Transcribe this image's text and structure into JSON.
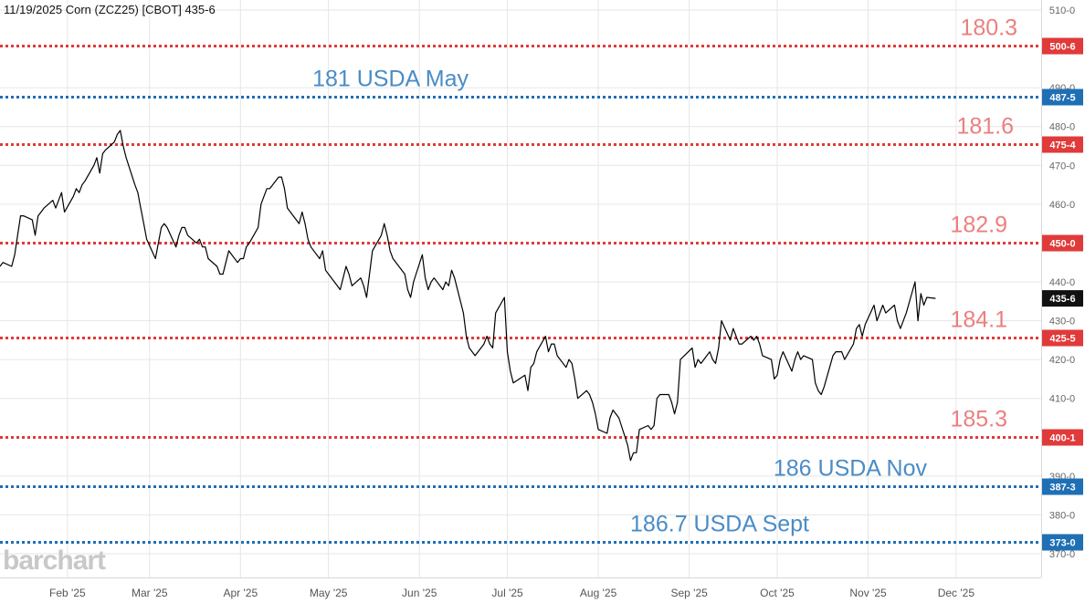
{
  "header": {
    "title": "11/19/2025 Corn (ZCZ25) [CBOT] 435-6"
  },
  "watermark": "barchart",
  "colors": {
    "red_line": "#e03a3a",
    "blue_line": "#1f6fb5",
    "red_annotation": "#ec7f7f",
    "blue_annotation": "#4a8cc6",
    "price_tag": "#111111",
    "grid": "#e6e6e6",
    "price_line": "#000000"
  },
  "chart_data": {
    "type": "line",
    "title": "11/19/2025 Corn (ZCZ25) [CBOT] 435-6",
    "xlabel": "",
    "ylabel": "",
    "ylim": [
      366,
      512
    ],
    "xlim": [
      "2025-01-09",
      "2025-12-30"
    ],
    "grid": true,
    "y_axis_position": "right",
    "y_ticks": [
      {
        "value": 510,
        "label": "510-0"
      },
      {
        "value": 490,
        "label": "490-0"
      },
      {
        "value": 480,
        "label": "480-0"
      },
      {
        "value": 470,
        "label": "470-0"
      },
      {
        "value": 460,
        "label": "460-0"
      },
      {
        "value": 440,
        "label": "440-0"
      },
      {
        "value": 430,
        "label": "430-0"
      },
      {
        "value": 420,
        "label": "420-0"
      },
      {
        "value": 410,
        "label": "410-0"
      },
      {
        "value": 390,
        "label": "390-0"
      },
      {
        "value": 380,
        "label": "380-0"
      },
      {
        "value": 370,
        "label": "370-0"
      }
    ],
    "x_ticks": [
      {
        "date": "2025-02-01",
        "label": "Feb '25"
      },
      {
        "date": "2025-03-01",
        "label": "Mar '25"
      },
      {
        "date": "2025-04-01",
        "label": "Apr '25"
      },
      {
        "date": "2025-05-01",
        "label": "May '25"
      },
      {
        "date": "2025-06-01",
        "label": "Jun '25"
      },
      {
        "date": "2025-07-01",
        "label": "Jul '25"
      },
      {
        "date": "2025-08-01",
        "label": "Aug '25"
      },
      {
        "date": "2025-09-01",
        "label": "Sep '25"
      },
      {
        "date": "2025-10-01",
        "label": "Oct '25"
      },
      {
        "date": "2025-11-01",
        "label": "Nov '25"
      },
      {
        "date": "2025-12-01",
        "label": "Dec '25"
      }
    ],
    "last_price": {
      "value": 435.75,
      "label": "435-6"
    },
    "levels": [
      {
        "value": 500.75,
        "tag": "500-6",
        "annotation": "180.3",
        "color": "red"
      },
      {
        "value": 487.625,
        "tag": "487-5",
        "annotation": "181 USDA May",
        "color": "blue"
      },
      {
        "value": 475.5,
        "tag": "475-4",
        "annotation": "181.6",
        "color": "red"
      },
      {
        "value": 450.0,
        "tag": "450-0",
        "annotation": "182.9",
        "color": "red"
      },
      {
        "value": 425.625,
        "tag": "425-5",
        "annotation": "184.1",
        "color": "red"
      },
      {
        "value": 400.125,
        "tag": "400-1",
        "annotation": "185.3",
        "color": "red"
      },
      {
        "value": 387.375,
        "tag": "387-3",
        "annotation": "186 USDA Nov",
        "color": "blue"
      },
      {
        "value": 373.0,
        "tag": "373-0",
        "annotation": "186.7 USDA Sept",
        "color": "blue"
      }
    ],
    "series": [
      {
        "points": [
          [
            "2025-01-09",
            444
          ],
          [
            "2025-01-10",
            445
          ],
          [
            "2025-01-13",
            444
          ],
          [
            "2025-01-14",
            447
          ],
          [
            "2025-01-15",
            452
          ],
          [
            "2025-01-16",
            457
          ],
          [
            "2025-01-17",
            457
          ],
          [
            "2025-01-20",
            456
          ],
          [
            "2025-01-21",
            452
          ],
          [
            "2025-01-22",
            457
          ],
          [
            "2025-01-23",
            458
          ],
          [
            "2025-01-24",
            459
          ],
          [
            "2025-01-27",
            461
          ],
          [
            "2025-01-28",
            459
          ],
          [
            "2025-01-29",
            461
          ],
          [
            "2025-01-30",
            463
          ],
          [
            "2025-01-31",
            458
          ],
          [
            "2025-02-03",
            462
          ],
          [
            "2025-02-04",
            464
          ],
          [
            "2025-02-05",
            463
          ],
          [
            "2025-02-06",
            465
          ],
          [
            "2025-02-07",
            466
          ],
          [
            "2025-02-10",
            470
          ],
          [
            "2025-02-11",
            472
          ],
          [
            "2025-02-12",
            468
          ],
          [
            "2025-02-13",
            473
          ],
          [
            "2025-02-14",
            474
          ],
          [
            "2025-02-17",
            476
          ],
          [
            "2025-02-18",
            478
          ],
          [
            "2025-02-19",
            479
          ],
          [
            "2025-02-20",
            475
          ],
          [
            "2025-02-21",
            472
          ],
          [
            "2025-02-24",
            465
          ],
          [
            "2025-02-25",
            463
          ],
          [
            "2025-02-26",
            459
          ],
          [
            "2025-02-27",
            455
          ],
          [
            "2025-02-28",
            451
          ],
          [
            "2025-03-03",
            446
          ],
          [
            "2025-03-04",
            450
          ],
          [
            "2025-03-05",
            454
          ],
          [
            "2025-03-06",
            455
          ],
          [
            "2025-03-07",
            454
          ],
          [
            "2025-03-10",
            449
          ],
          [
            "2025-03-11",
            452
          ],
          [
            "2025-03-12",
            454
          ],
          [
            "2025-03-13",
            454
          ],
          [
            "2025-03-14",
            452
          ],
          [
            "2025-03-17",
            450
          ],
          [
            "2025-03-18",
            451
          ],
          [
            "2025-03-19",
            449
          ],
          [
            "2025-03-20",
            449
          ],
          [
            "2025-03-21",
            446
          ],
          [
            "2025-03-24",
            444
          ],
          [
            "2025-03-25",
            442
          ],
          [
            "2025-03-26",
            442
          ],
          [
            "2025-03-27",
            445
          ],
          [
            "2025-03-28",
            448
          ],
          [
            "2025-03-31",
            445
          ],
          [
            "2025-04-01",
            446
          ],
          [
            "2025-04-02",
            446
          ],
          [
            "2025-04-03",
            449
          ],
          [
            "2025-04-04",
            450
          ],
          [
            "2025-04-07",
            454
          ],
          [
            "2025-04-08",
            460
          ],
          [
            "2025-04-09",
            462
          ],
          [
            "2025-04-10",
            464
          ],
          [
            "2025-04-11",
            464
          ],
          [
            "2025-04-14",
            467
          ],
          [
            "2025-04-15",
            467
          ],
          [
            "2025-04-16",
            464
          ],
          [
            "2025-04-17",
            459
          ],
          [
            "2025-04-21",
            455
          ],
          [
            "2025-04-22",
            458
          ],
          [
            "2025-04-23",
            455
          ],
          [
            "2025-04-24",
            451
          ],
          [
            "2025-04-25",
            449
          ],
          [
            "2025-04-28",
            446
          ],
          [
            "2025-04-29",
            448
          ],
          [
            "2025-04-30",
            443
          ],
          [
            "2025-05-01",
            442
          ],
          [
            "2025-05-02",
            441
          ],
          [
            "2025-05-05",
            438
          ],
          [
            "2025-05-06",
            441
          ],
          [
            "2025-05-07",
            444
          ],
          [
            "2025-05-08",
            442
          ],
          [
            "2025-05-09",
            439
          ],
          [
            "2025-05-12",
            441
          ],
          [
            "2025-05-13",
            439
          ],
          [
            "2025-05-14",
            436
          ],
          [
            "2025-05-15",
            442
          ],
          [
            "2025-05-16",
            448
          ],
          [
            "2025-05-19",
            452
          ],
          [
            "2025-05-20",
            455
          ],
          [
            "2025-05-21",
            452
          ],
          [
            "2025-05-22",
            448
          ],
          [
            "2025-05-23",
            446
          ],
          [
            "2025-05-27",
            442
          ],
          [
            "2025-05-28",
            438
          ],
          [
            "2025-05-29",
            436
          ],
          [
            "2025-05-30",
            440
          ],
          [
            "2025-06-02",
            447
          ],
          [
            "2025-06-03",
            441
          ],
          [
            "2025-06-04",
            438
          ],
          [
            "2025-06-05",
            440
          ],
          [
            "2025-06-06",
            441
          ],
          [
            "2025-06-09",
            438
          ],
          [
            "2025-06-10",
            440
          ],
          [
            "2025-06-11",
            439
          ],
          [
            "2025-06-12",
            443
          ],
          [
            "2025-06-13",
            441
          ],
          [
            "2025-06-16",
            432
          ],
          [
            "2025-06-17",
            426
          ],
          [
            "2025-06-18",
            423
          ],
          [
            "2025-06-20",
            421
          ],
          [
            "2025-06-23",
            424
          ],
          [
            "2025-06-24",
            426
          ],
          [
            "2025-06-25",
            424
          ],
          [
            "2025-06-26",
            423
          ],
          [
            "2025-06-27",
            432
          ],
          [
            "2025-06-30",
            436
          ],
          [
            "2025-07-01",
            422
          ],
          [
            "2025-07-02",
            417
          ],
          [
            "2025-07-03",
            414
          ],
          [
            "2025-07-07",
            416
          ],
          [
            "2025-07-08",
            412
          ],
          [
            "2025-07-09",
            418
          ],
          [
            "2025-07-10",
            419
          ],
          [
            "2025-07-11",
            422
          ],
          [
            "2025-07-14",
            426
          ],
          [
            "2025-07-15",
            422
          ],
          [
            "2025-07-16",
            424
          ],
          [
            "2025-07-17",
            424
          ],
          [
            "2025-07-18",
            421
          ],
          [
            "2025-07-21",
            418
          ],
          [
            "2025-07-22",
            420
          ],
          [
            "2025-07-23",
            419
          ],
          [
            "2025-07-24",
            415
          ],
          [
            "2025-07-25",
            410
          ],
          [
            "2025-07-28",
            412
          ],
          [
            "2025-07-29",
            411
          ],
          [
            "2025-07-30",
            409
          ],
          [
            "2025-07-31",
            406
          ],
          [
            "2025-08-01",
            402
          ],
          [
            "2025-08-04",
            401
          ],
          [
            "2025-08-05",
            405
          ],
          [
            "2025-08-06",
            407
          ],
          [
            "2025-08-07",
            406
          ],
          [
            "2025-08-08",
            405
          ],
          [
            "2025-08-11",
            398
          ],
          [
            "2025-08-12",
            394
          ],
          [
            "2025-08-13",
            396
          ],
          [
            "2025-08-14",
            396
          ],
          [
            "2025-08-15",
            402
          ],
          [
            "2025-08-18",
            403
          ],
          [
            "2025-08-19",
            402
          ],
          [
            "2025-08-20",
            403
          ],
          [
            "2025-08-21",
            410
          ],
          [
            "2025-08-22",
            411
          ],
          [
            "2025-08-25",
            411
          ],
          [
            "2025-08-26",
            409
          ],
          [
            "2025-08-27",
            406
          ],
          [
            "2025-08-28",
            409
          ],
          [
            "2025-08-29",
            420
          ],
          [
            "2025-09-02",
            423
          ],
          [
            "2025-09-03",
            418
          ],
          [
            "2025-09-04",
            420
          ],
          [
            "2025-09-05",
            419
          ],
          [
            "2025-09-08",
            422
          ],
          [
            "2025-09-09",
            420
          ],
          [
            "2025-09-10",
            419
          ],
          [
            "2025-09-11",
            423
          ],
          [
            "2025-09-12",
            430
          ],
          [
            "2025-09-15",
            425
          ],
          [
            "2025-09-16",
            428
          ],
          [
            "2025-09-17",
            426
          ],
          [
            "2025-09-18",
            424
          ],
          [
            "2025-09-19",
            424
          ],
          [
            "2025-09-22",
            426
          ],
          [
            "2025-09-23",
            425
          ],
          [
            "2025-09-24",
            426
          ],
          [
            "2025-09-25",
            424
          ],
          [
            "2025-09-26",
            421
          ],
          [
            "2025-09-29",
            420
          ],
          [
            "2025-09-30",
            415
          ],
          [
            "2025-10-01",
            416
          ],
          [
            "2025-10-02",
            420
          ],
          [
            "2025-10-03",
            422
          ],
          [
            "2025-10-06",
            417
          ],
          [
            "2025-10-07",
            420
          ],
          [
            "2025-10-08",
            422
          ],
          [
            "2025-10-09",
            420
          ],
          [
            "2025-10-10",
            421
          ],
          [
            "2025-10-13",
            420
          ],
          [
            "2025-10-14",
            414
          ],
          [
            "2025-10-15",
            412
          ],
          [
            "2025-10-16",
            411
          ],
          [
            "2025-10-17",
            413
          ],
          [
            "2025-10-20",
            421
          ],
          [
            "2025-10-21",
            422
          ],
          [
            "2025-10-22",
            422
          ],
          [
            "2025-10-23",
            422
          ],
          [
            "2025-10-24",
            420
          ],
          [
            "2025-10-27",
            424
          ],
          [
            "2025-10-28",
            428
          ],
          [
            "2025-10-29",
            429
          ],
          [
            "2025-10-30",
            426
          ],
          [
            "2025-10-31",
            429
          ],
          [
            "2025-11-03",
            434
          ],
          [
            "2025-11-04",
            430
          ],
          [
            "2025-11-05",
            432
          ],
          [
            "2025-11-06",
            434
          ],
          [
            "2025-11-07",
            432
          ],
          [
            "2025-11-10",
            434
          ],
          [
            "2025-11-11",
            430
          ],
          [
            "2025-11-12",
            428
          ],
          [
            "2025-11-13",
            430
          ],
          [
            "2025-11-14",
            432
          ],
          [
            "2025-11-17",
            440
          ],
          [
            "2025-11-18",
            430
          ],
          [
            "2025-11-19",
            437
          ],
          [
            "2025-11-20",
            434
          ],
          [
            "2025-11-21",
            436
          ],
          [
            "2025-11-24",
            435.75
          ]
        ]
      }
    ]
  }
}
